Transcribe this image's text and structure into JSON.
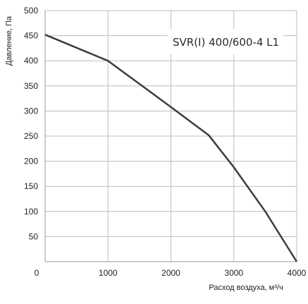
{
  "chart_data": {
    "type": "line",
    "title": "",
    "xlabel": "Расход воздуха, м³/ч",
    "ylabel": "Давление, Па",
    "xlim": [
      0,
      4000
    ],
    "ylim": [
      0,
      500
    ],
    "x_ticks": [
      0,
      1000,
      2000,
      3000,
      4000
    ],
    "y_ticks": [
      50,
      100,
      150,
      200,
      250,
      300,
      350,
      400,
      450,
      500
    ],
    "grid": true,
    "legend_position": "top-right",
    "series": [
      {
        "name": "SVR(I) 400/600-4 L1",
        "color": "#3c3c3c",
        "x": [
          0,
          1000,
          2000,
          2600,
          3000,
          3500,
          4000
        ],
        "y": [
          452,
          400,
          308,
          252,
          188,
          100,
          0
        ]
      }
    ]
  }
}
